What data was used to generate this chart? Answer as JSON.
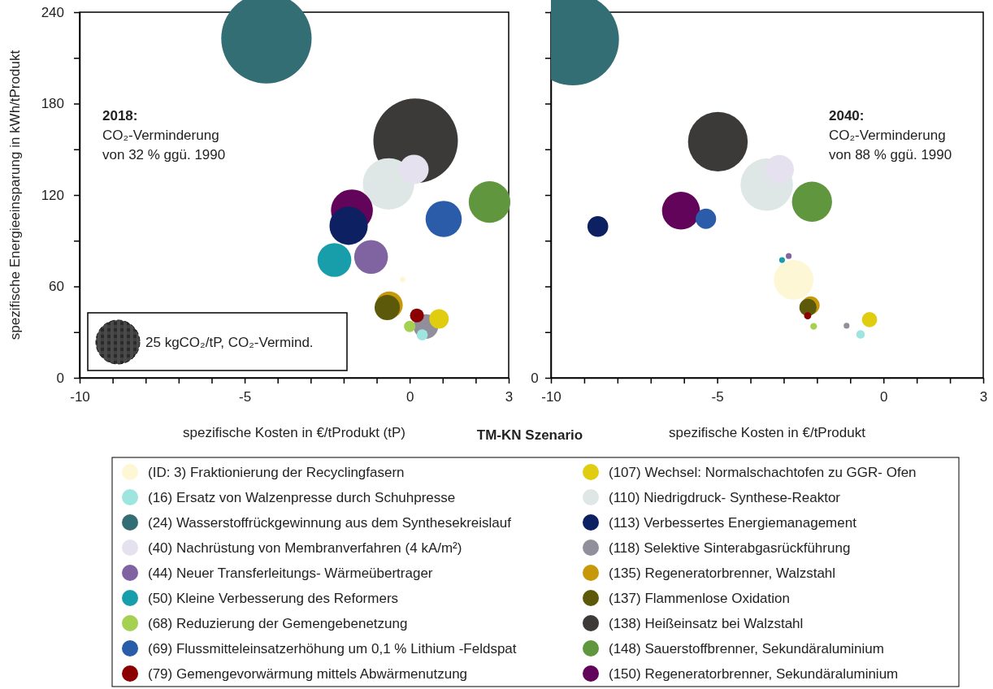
{
  "chart_data": [
    {
      "type": "bubble",
      "title": "TM-KN Szenario",
      "xlabel": "spezifische Kosten in €/tProdukt (tP)",
      "ylabel": "spezifische Energieeinsparung in kWh/tProdukt",
      "annotations": [
        "2018:",
        "CO₂-Verminderung",
        "von 32 % ggü. 1990"
      ],
      "xlim": [
        -10,
        3
      ],
      "xticks": [
        -10,
        {
          "value": -9,
          "label": null
        },
        {
          "value": -8,
          "label": null
        },
        {
          "value": -7,
          "label": null
        },
        {
          "value": -6,
          "label": null
        },
        -5,
        {
          "value": -4,
          "label": null
        },
        {
          "value": -3,
          "label": null
        },
        {
          "value": -2,
          "label": null
        },
        {
          "value": -1,
          "label": null
        },
        0,
        {
          "value": 1,
          "label": null
        },
        {
          "value": 2,
          "label": null
        },
        3
      ],
      "ylim": [
        0,
        240
      ],
      "yticks": [
        0,
        {
          "value": 30,
          "label": null
        },
        60,
        {
          "value": 90,
          "label": null
        },
        120,
        {
          "value": 150,
          "label": null
        },
        180,
        {
          "value": 210,
          "label": null
        },
        240
      ],
      "size_legend": [
        {
          "value": 25,
          "label": "25 kgCO₂/tP, CO₂-Vermind."
        }
      ],
      "legend": "bottom",
      "series": [
        {
          "name": "(ID: 3) Fraktionierung der Recyclingfasern",
          "color": "#fdf7d6",
          "x": [
            -0.21
          ],
          "values": [
            64.5
          ],
          "sizes": [
            0.42
          ]
        },
        {
          "name": "(16) Ersatz von Walzenpresse durch Schuhpresse",
          "color": "#9ee5df",
          "x": [
            0.38
          ],
          "values": [
            28.2
          ],
          "sizes": [
            1.6
          ]
        },
        {
          "name": "(24) Wasserstoffrückgewinnung aus dem Synthesekreislauf",
          "color": "#336e74",
          "x": [
            -4.34
          ],
          "values": [
            222.8
          ],
          "sizes": [
            106
          ]
        },
        {
          "name": "(40) Nachrüstung von Membranverfahren (4 kA/m²)",
          "color": "#e6e1ee",
          "x": [
            0.13
          ],
          "values": [
            136.8
          ],
          "sizes": [
            11.2
          ]
        },
        {
          "name": "(44) Neuer Transferleitungs- Wärmeübertrager",
          "color": "#8064a2",
          "x": [
            -1.17
          ],
          "values": [
            79.3
          ],
          "sizes": [
            14.8
          ]
        },
        {
          "name": "(50) Kleine Verbesserung des Reformers",
          "color": "#189dab",
          "x": [
            -2.28
          ],
          "values": [
            77.3
          ],
          "sizes": [
            14.8
          ]
        },
        {
          "name": "(68) Reduzierung der Gemengebenetzung",
          "color": "#a5d152",
          "x": [
            0.0
          ],
          "values": [
            33.7
          ],
          "sizes": [
            1.7
          ]
        },
        {
          "name": "(69) Flussmitteleinsatzerhöhung um 0,1 % Lithium -Feldspat",
          "color": "#2a5caa",
          "x": [
            1.03
          ],
          "values": [
            104.3
          ],
          "sizes": [
            17
          ]
        },
        {
          "name": "(79) Gemengevorwärmung mittels Abwärmenutzung",
          "color": "#8b0000",
          "x": [
            0.22
          ],
          "values": [
            40.9
          ],
          "sizes": [
            2.5
          ]
        },
        {
          "name": "(107) Wechsel: Normalschachtofen zu GGR- Ofen",
          "color": "#e0cd10",
          "x": [
            0.89
          ],
          "values": [
            38.7
          ],
          "sizes": [
            4.9
          ]
        },
        {
          "name": "(110) Niedrigdruck- Synthese-Reaktor",
          "color": "#dfe7e6",
          "x": [
            -0.64
          ],
          "values": [
            127.3
          ],
          "sizes": [
            34.4
          ]
        },
        {
          "name": "(113) Verbessertes Energiemanagement",
          "color": "#0c2062",
          "x": [
            -1.85
          ],
          "values": [
            99.8
          ],
          "sizes": [
            19
          ]
        },
        {
          "name": "(118) Selektive Sinterabgasrückführung",
          "color": "#918f9b",
          "x": [
            0.49
          ],
          "values": [
            33.7
          ],
          "sizes": [
            7.9
          ]
        },
        {
          "name": "(135) Regeneratorbrenner, Walzstahl",
          "color": "#c7980a",
          "x": [
            -0.62
          ],
          "values": [
            47.8
          ],
          "sizes": [
            9.5
          ]
        },
        {
          "name": "(137) Flammenlose Oxidation",
          "color": "#5c5a0a",
          "x": [
            -0.68
          ],
          "values": [
            46.1
          ],
          "sizes": [
            8.3
          ]
        },
        {
          "name": "(138) Heißeinsatz bei Walzstahl",
          "color": "#3b3a39",
          "x": [
            0.18
          ],
          "values": [
            155.6
          ],
          "sizes": [
            92.7
          ]
        },
        {
          "name": "(148) Sauerstoffbrenner, Sekundäraluminium",
          "color": "#5f963e",
          "x": [
            2.42
          ],
          "values": [
            115.4
          ],
          "sizes": [
            22.5
          ]
        },
        {
          "name": "(150) Regeneratorbrenner, Sekundäraluminium",
          "color": "#62045a",
          "x": [
            -1.75
          ],
          "values": [
            109.9
          ],
          "sizes": [
            22.8
          ]
        }
      ]
    },
    {
      "type": "bubble",
      "xlabel": "spezifische Kosten in €/tProdukt",
      "annotations": [
        "2040:",
        "CO₂-Verminderung",
        "von 88 % ggü. 1990",
        "0"
      ],
      "tick_labels": "x",
      "xlim": [
        -10,
        3
      ],
      "xticks": [
        -10,
        {
          "value": -9,
          "label": null
        },
        {
          "value": -8,
          "label": null
        },
        {
          "value": -7,
          "label": null
        },
        {
          "value": -6,
          "label": null
        },
        -5,
        {
          "value": -4,
          "label": null
        },
        {
          "value": -3,
          "label": null
        },
        {
          "value": -2,
          "label": null
        },
        {
          "value": -1,
          "label": null
        },
        0,
        {
          "value": 1,
          "label": null
        },
        {
          "value": 2,
          "label": null
        },
        3
      ],
      "ylim": [
        0,
        240
      ],
      "yticks": [
        0,
        {
          "value": 30,
          "label": null
        },
        {
          "value": 60,
          "label": null
        },
        {
          "value": 90,
          "label": null
        },
        {
          "value": 120,
          "label": null
        },
        {
          "value": 150,
          "label": null
        },
        {
          "value": 180,
          "label": null
        },
        {
          "value": 210,
          "label": null
        },
        {
          "value": 240,
          "label": null
        }
      ],
      "series": [
        {
          "color": "#fdf7d6",
          "x": [
            -2.7
          ],
          "values": [
            64.3
          ],
          "sizes": [
            0.185
          ]
        },
        {
          "color": "#9ee5df",
          "x": [
            -0.69
          ],
          "values": [
            28.5
          ],
          "sizes": [
            0.0085
          ]
        },
        {
          "color": "#336e74",
          "x": [
            -9.34
          ],
          "values": [
            222.2
          ],
          "sizes": [
            1
          ]
        },
        {
          "color": "#e6e1ee",
          "x": [
            -3.13
          ],
          "values": [
            136.7
          ],
          "sizes": [
            0.099
          ]
        },
        {
          "color": "#8064a2",
          "x": [
            -2.85
          ],
          "values": [
            79.9
          ],
          "sizes": [
            0.004
          ]
        },
        {
          "color": "#189dab",
          "x": [
            -3.05
          ],
          "values": [
            77.3
          ],
          "sizes": [
            0.004
          ]
        },
        {
          "color": "#a5d152",
          "x": [
            -2.1
          ],
          "values": [
            33.8
          ],
          "sizes": [
            0.0053
          ]
        },
        {
          "color": "#2a5caa",
          "x": [
            -5.34
          ],
          "values": [
            104.4
          ],
          "sizes": [
            0.049
          ]
        },
        {
          "color": "#8b0000",
          "x": [
            -2.28
          ],
          "values": [
            40.7
          ],
          "sizes": [
            0.006
          ]
        },
        {
          "color": "#e0cd10",
          "x": [
            -0.42
          ],
          "values": [
            38.2
          ],
          "sizes": [
            0.027
          ]
        },
        {
          "color": "#dfe7e6",
          "x": [
            -3.51
          ],
          "values": [
            126.8
          ],
          "sizes": [
            0.324
          ]
        },
        {
          "color": "#0c2062",
          "x": [
            -8.59
          ],
          "values": [
            99.3
          ],
          "sizes": [
            0.051
          ]
        },
        {
          "color": "#918f9b",
          "x": [
            -1.11
          ],
          "values": [
            34.2
          ],
          "sizes": [
            0.004
          ]
        },
        {
          "color": "#c7980a",
          "x": [
            -2.19
          ],
          "values": [
            47.6
          ],
          "sizes": [
            0.038
          ]
        },
        {
          "color": "#5c5a0a",
          "x": [
            -2.27
          ],
          "values": [
            46.2
          ],
          "sizes": [
            0.035
          ]
        },
        {
          "color": "#3b3a39",
          "x": [
            -4.98
          ],
          "values": [
            155.0
          ],
          "sizes": [
            0.42
          ]
        },
        {
          "color": "#5f963e",
          "x": [
            -2.15
          ],
          "values": [
            115.6
          ],
          "sizes": [
            0.189
          ]
        },
        {
          "color": "#62045a",
          "x": [
            -6.09
          ],
          "values": [
            109.7
          ],
          "sizes": [
            0.169
          ]
        }
      ]
    }
  ]
}
